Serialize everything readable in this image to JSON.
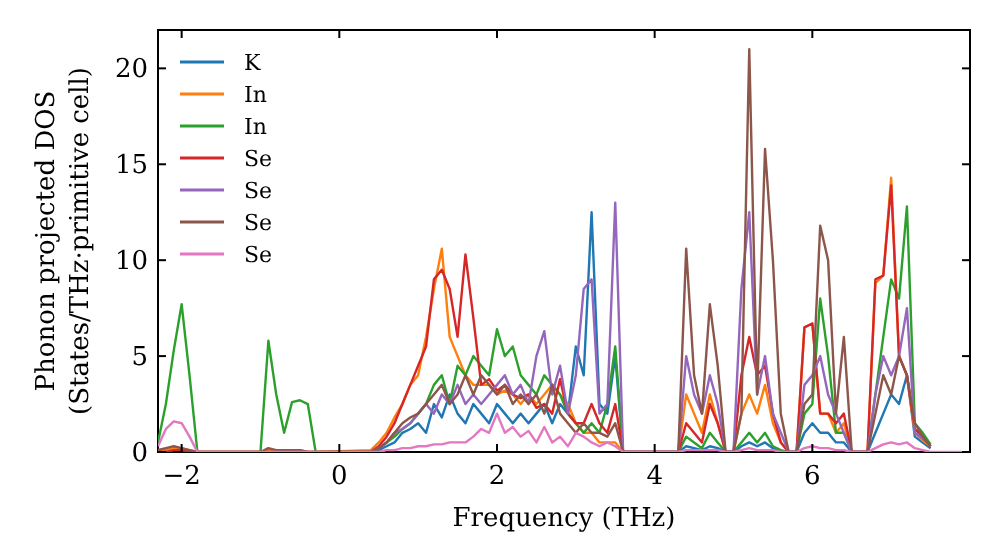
{
  "chart_data": {
    "type": "line",
    "xlabel": "Frequency (THz)",
    "ylabel": "Phonon projected DOS\n(States/THz·primitive cell)",
    "x": [
      -2.3,
      -2.2,
      -2.1,
      -2.0,
      -1.9,
      -1.8,
      -1.0,
      -0.9,
      -0.8,
      -0.7,
      -0.6,
      -0.5,
      -0.4,
      -0.3,
      0.4,
      0.5,
      0.6,
      0.7,
      0.8,
      0.9,
      1.0,
      1.1,
      1.2,
      1.3,
      1.4,
      1.5,
      1.6,
      1.7,
      1.8,
      1.9,
      2.0,
      2.1,
      2.2,
      2.3,
      2.4,
      2.5,
      2.6,
      2.7,
      2.8,
      2.9,
      3.0,
      3.1,
      3.2,
      3.3,
      3.4,
      3.5,
      3.6,
      4.3,
      4.4,
      4.5,
      4.6,
      4.7,
      4.8,
      4.9,
      5.0,
      5.1,
      5.2,
      5.3,
      5.4,
      5.5,
      5.6,
      5.7,
      5.8,
      5.9,
      6.0,
      6.1,
      6.2,
      6.3,
      6.4,
      6.5,
      6.6,
      6.7,
      6.8,
      6.9,
      7.0,
      7.1,
      7.2,
      7.3,
      7.4,
      7.5,
      7.6,
      7.9
    ],
    "series": [
      {
        "name": "K",
        "color": "#1f77b4",
        "values": [
          null,
          null,
          null,
          null,
          null,
          null,
          null,
          null,
          null,
          null,
          null,
          null,
          null,
          null,
          0,
          0.1,
          0.3,
          0.5,
          1,
          1.2,
          1.5,
          1,
          2.5,
          1.8,
          3,
          2,
          1.5,
          2.5,
          2,
          1.5,
          2.5,
          2,
          1.5,
          2,
          1.5,
          2,
          2.5,
          1.5,
          2.5,
          2,
          5.5,
          4,
          12.5,
          2.5,
          2,
          5,
          0,
          0,
          0.3,
          0.2,
          0.1,
          0.3,
          0.2,
          0,
          0,
          0.3,
          0.5,
          0.3,
          0.5,
          0.2,
          0,
          0,
          0,
          1,
          1.5,
          1,
          1,
          0.5,
          0.5,
          0,
          0,
          0,
          1,
          2,
          3,
          2.5,
          4,
          0.8,
          0.5,
          0.2,
          null,
          null
        ]
      },
      {
        "name": "In",
        "color": "#ff7f0e",
        "values": [
          0.1,
          0.1,
          0.2,
          0.2,
          0.1,
          0,
          0,
          0.1,
          0.1,
          0.1,
          0.1,
          0.1,
          0,
          0,
          0.1,
          0.5,
          1,
          1.8,
          2.5,
          3.5,
          4,
          6,
          8.5,
          10.6,
          6,
          5,
          4,
          3.5,
          3.5,
          3.5,
          3,
          3.2,
          3,
          2.5,
          3,
          2.5,
          3,
          3.5,
          3,
          2.5,
          1.5,
          1,
          1,
          0.5,
          0.5,
          0.5,
          0,
          0,
          3,
          2,
          1,
          3,
          1.5,
          0,
          0,
          2,
          3,
          2,
          3.5,
          1.5,
          0.5,
          0,
          0,
          6.5,
          6.7,
          2,
          2,
          1,
          1.5,
          0,
          0,
          0,
          8.8,
          9.2,
          14.3,
          5,
          4,
          1,
          0.6,
          0.3,
          null,
          null
        ]
      },
      {
        "name": "In",
        "color": "#2ca02c",
        "values": [
          0.5,
          2.5,
          5.3,
          7.7,
          4,
          0,
          0,
          5.8,
          3,
          1,
          2.6,
          2.7,
          2.5,
          0,
          0,
          0.2,
          0.5,
          0.8,
          1.2,
          1.5,
          2,
          2.5,
          3.5,
          4,
          2.5,
          4.5,
          4,
          5,
          4.5,
          4,
          6.4,
          5,
          5.5,
          4,
          3.5,
          3,
          4,
          3.5,
          3,
          2,
          1.5,
          1,
          1.5,
          1,
          2.5,
          5.5,
          0,
          0,
          0.8,
          0.5,
          0.2,
          1,
          0.5,
          0,
          0,
          0.5,
          1,
          0.5,
          1,
          0.3,
          0.1,
          0,
          0,
          2,
          2.5,
          8,
          5,
          1,
          1,
          0,
          0,
          0,
          3,
          6,
          9,
          8,
          12.8,
          1.5,
          1,
          0.4,
          null,
          null
        ]
      },
      {
        "name": "Se",
        "color": "#d62728",
        "values": [
          0,
          0,
          0.1,
          0.1,
          0,
          0,
          0,
          0,
          0,
          0,
          0,
          0,
          0,
          0,
          0,
          0.3,
          0.8,
          1.5,
          2.5,
          3.5,
          4.5,
          5.5,
          9,
          9.5,
          8.5,
          6,
          10.3,
          7,
          3.5,
          3.8,
          3.2,
          3.5,
          3,
          2.8,
          3,
          2.3,
          2.5,
          2,
          3.8,
          2,
          1.5,
          1.5,
          2.5,
          1.5,
          1,
          2.5,
          0,
          0,
          1.5,
          1,
          0.5,
          2.5,
          1.5,
          0,
          0,
          4,
          6,
          4,
          4.5,
          2,
          0.5,
          0,
          0,
          6.5,
          6.7,
          2,
          2,
          1.5,
          2,
          0,
          0,
          0,
          9,
          9.2,
          13.9,
          5,
          4,
          1.2,
          0.8,
          0.3,
          null,
          null
        ]
      },
      {
        "name": "Se",
        "color": "#9467bd",
        "values": [
          null,
          null,
          null,
          null,
          null,
          null,
          null,
          null,
          null,
          null,
          null,
          null,
          null,
          null,
          0,
          0.2,
          0.5,
          1,
          1.2,
          1.5,
          2,
          2.5,
          2,
          3,
          2.5,
          3.5,
          2.5,
          3,
          2.5,
          3,
          3.5,
          4,
          3,
          3.5,
          2.5,
          5,
          6.3,
          3,
          4.5,
          2,
          4,
          8.5,
          9,
          2,
          2.5,
          13,
          0,
          0,
          5,
          3,
          2,
          4,
          2.5,
          0,
          0,
          8.5,
          12.5,
          3,
          5,
          2,
          1,
          0,
          0,
          3.5,
          4,
          5,
          3,
          2,
          1,
          0,
          0,
          0,
          3,
          5,
          4,
          5,
          7.5,
          1,
          0.7,
          0.3,
          null,
          null
        ]
      },
      {
        "name": "Se",
        "color": "#8c564b",
        "values": [
          0.1,
          0.2,
          0.3,
          0.2,
          0.1,
          0,
          0,
          0.2,
          0.1,
          0.1,
          0.1,
          0.1,
          0,
          0,
          0,
          0.2,
          0.5,
          1,
          1.5,
          1.8,
          2,
          2.5,
          3,
          3.5,
          2.5,
          3,
          4,
          3,
          4,
          3.5,
          3,
          3.5,
          2.5,
          3,
          2.5,
          3,
          2,
          3.5,
          2,
          1.5,
          1,
          1.5,
          1,
          1,
          0.8,
          1.5,
          0,
          0,
          10.6,
          4,
          2,
          7.7,
          4.5,
          0,
          0,
          2,
          21,
          3,
          15.8,
          10,
          2,
          0,
          0,
          2.5,
          3,
          11.8,
          10,
          2,
          6,
          0,
          0,
          0,
          2,
          4,
          3,
          5,
          4,
          1.5,
          0.8,
          0.3,
          null,
          null
        ]
      },
      {
        "name": "Se",
        "color": "#e377c2",
        "values": [
          0.3,
          1.2,
          1.6,
          1.5,
          0.8,
          0,
          0,
          0,
          0,
          0,
          0,
          0,
          0,
          0,
          0,
          0,
          0.1,
          0.1,
          0.2,
          0.2,
          0.3,
          0.3,
          0.4,
          0.4,
          0.5,
          0.5,
          0.5,
          0.8,
          1.2,
          1,
          2,
          1,
          1.3,
          0.8,
          1.1,
          0.5,
          1.3,
          0.5,
          0.8,
          0.3,
          1,
          0.8,
          0.5,
          0.3,
          0.5,
          0.3,
          0,
          0,
          0.1,
          0.1,
          0.1,
          0.1,
          0.1,
          0,
          0,
          0.1,
          0.2,
          0.1,
          0.1,
          0.1,
          0,
          0,
          0,
          0.2,
          0.3,
          0.2,
          0.2,
          0.1,
          0.1,
          0,
          0,
          0,
          0.2,
          0.4,
          0.5,
          0.4,
          0.5,
          0.2,
          0.1,
          0,
          0,
          0
        ]
      }
    ],
    "xlim": [
      -2.3,
      8.0
    ],
    "ylim": [
      0,
      22
    ],
    "xticks": [
      -2,
      0,
      2,
      4,
      6
    ],
    "yticks": [
      0,
      5,
      10,
      15,
      20
    ],
    "legend": "top left",
    "grid": false
  }
}
